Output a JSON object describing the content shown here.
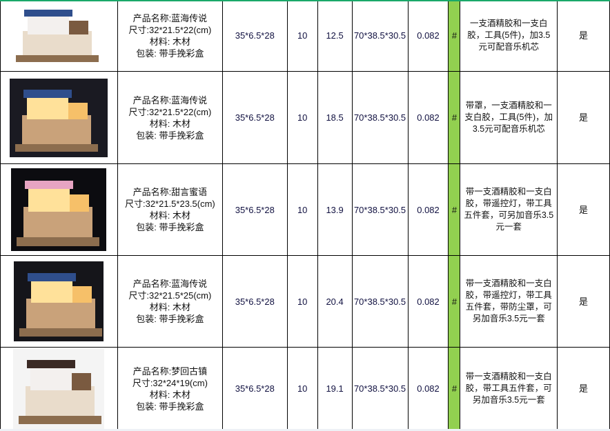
{
  "rows": [
    {
      "image": "dollhouse-blue-sea-legend",
      "name": "产品名称:蓝海传说",
      "size": "尺寸:32*21.5*22(cm)",
      "material": "材料:  木材",
      "packing": "包装: 带手挽彩盒",
      "box_size": "35*6.5*28",
      "qty": "10",
      "weight": "12.5",
      "carton": "70*38.5*30.5",
      "volume": "0.082",
      "mark": "#",
      "remarks": "一支酒精胶和一支白胶，工具(5件)，加3.5元可配音乐机芯",
      "flag": "是",
      "bg": "#ffffff"
    },
    {
      "image": "dollhouse-blue-sea-legend-with-cover",
      "name": "产品名称:蓝海传说",
      "size": "尺寸:32*21.5*22(cm)",
      "material": "材料:  木材",
      "packing": "包装: 带手挽彩盒",
      "box_size": "35*6.5*28",
      "qty": "10",
      "weight": "18.5",
      "carton": "70*38.5*30.5",
      "volume": "0.082",
      "mark": "#",
      "remarks": "带罩，一支酒精胶和一支白胶，工具(5件)，加3.5元可配音乐机芯",
      "flag": "是",
      "bg": "#1a1a22"
    },
    {
      "image": "dollhouse-sweet-words",
      "name": "产品名称:甜言蜜语",
      "size": "尺寸:32*21.5*23.5(cm)",
      "material": "材料:  木材",
      "packing": "包装: 带手挽彩盒",
      "box_size": "35*6.5*28",
      "qty": "10",
      "weight": "13.9",
      "carton": "70*38.5*30.5",
      "volume": "0.082",
      "mark": "#",
      "remarks": "带一支酒精胶和一支白胶，带遥控灯，带工具五件套，可另加音乐3.5元一套",
      "flag": "是",
      "bg": "#0c0c10"
    },
    {
      "image": "dollhouse-blue-sea-legend-cover",
      "name": "产品名称:蓝海传说",
      "size": "尺寸:32*21.5*25(cm)",
      "material": "材料:  木材",
      "packing": "包装: 带手挽彩盒",
      "box_size": "35*6.5*28",
      "qty": "10",
      "weight": "20.4",
      "carton": "70*38.5*30.5",
      "volume": "0.082",
      "mark": "#",
      "remarks": "带一支酒精胶和一支白胶，带遥控灯，带工具五件套，带防尘罩，可另加音乐3.5元一套",
      "flag": "是",
      "bg": "#15151a"
    },
    {
      "image": "dollhouse-dream-ancient-town",
      "name": "产品名称:梦回古镇",
      "size": "尺寸:32*24*19(cm)",
      "material": "材料:  木材",
      "packing": "包装: 带手挽彩盒",
      "box_size": "35*6.5*28",
      "qty": "10",
      "weight": "19.1",
      "carton": "70*38.5*30.5",
      "volume": "0.082",
      "mark": "#",
      "remarks": "带一支酒精胶和一支白胶，带工具五件套，可另加音乐3.5元一套",
      "flag": "是",
      "bg": "#f4f4f4"
    }
  ]
}
